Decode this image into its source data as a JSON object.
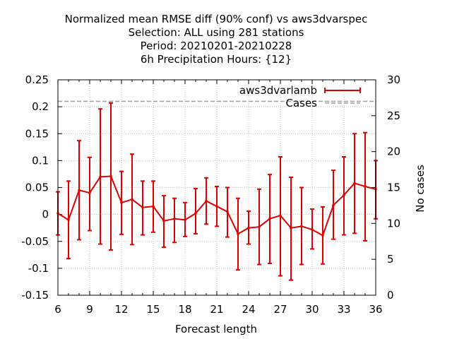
{
  "chart_data": {
    "type": "line",
    "title": [
      "Normalized mean RMSE diff (90% conf) vs aws3dvarspec",
      "Selection: ALL using   281 stations",
      "Period: 20210201-20210228",
      "6h Precipitation   Hours: {12}"
    ],
    "xlabel": "Forecast length",
    "ylabel": "",
    "y2label": "No cases",
    "xlim": [
      6,
      36
    ],
    "ylim": [
      -0.15,
      0.25
    ],
    "y2lim": [
      0,
      30
    ],
    "xticks": [
      "6",
      "9",
      "12",
      "15",
      "18",
      "21",
      "24",
      "27",
      "30",
      "33",
      "36"
    ],
    "yticks": [
      "0.25",
      "0.2",
      "0.15",
      "0.1",
      "0.05",
      "0",
      "-0.05",
      "-0.1",
      "-0.15"
    ],
    "y2ticks": [
      "30",
      "25",
      "20",
      "15",
      "10",
      "5",
      "0"
    ],
    "grid": true,
    "legend_position": "top-right",
    "series": [
      {
        "name": "aws3dvarlamb",
        "color": "#dd0000",
        "x": [
          6,
          7,
          8,
          9,
          10,
          11,
          12,
          13,
          14,
          15,
          16,
          17,
          18,
          19,
          20,
          21,
          22,
          23,
          24,
          25,
          26,
          27,
          28,
          29,
          30,
          31,
          32,
          33,
          34,
          35,
          36
        ],
        "y": [
          0.002,
          -0.01,
          0.045,
          0.04,
          0.07,
          0.071,
          0.022,
          0.028,
          0.013,
          0.015,
          -0.012,
          -0.008,
          -0.01,
          0.002,
          0.025,
          0.015,
          0.005,
          -0.036,
          -0.025,
          -0.023,
          -0.008,
          -0.002,
          -0.025,
          -0.022,
          -0.028,
          -0.039,
          0.017,
          0.036,
          0.058,
          0.052,
          0.047
        ],
        "err_low": [
          -0.038,
          -0.082,
          -0.047,
          -0.03,
          -0.055,
          -0.066,
          -0.037,
          -0.056,
          -0.038,
          -0.033,
          -0.061,
          -0.052,
          -0.041,
          -0.036,
          -0.018,
          -0.022,
          -0.042,
          -0.103,
          -0.055,
          -0.093,
          -0.091,
          -0.114,
          -0.122,
          -0.093,
          -0.064,
          -0.092,
          -0.046,
          -0.038,
          -0.035,
          -0.049,
          -0.008
        ],
        "err_high": [
          0.042,
          0.062,
          0.137,
          0.106,
          0.196,
          0.207,
          0.08,
          0.112,
          0.062,
          0.062,
          0.035,
          0.03,
          0.022,
          0.048,
          0.068,
          0.052,
          0.05,
          0.03,
          0.006,
          0.047,
          0.074,
          0.107,
          0.069,
          0.05,
          0.01,
          0.014,
          0.082,
          0.107,
          0.15,
          0.152,
          0.1
        ]
      },
      {
        "name": "Cases",
        "color": "#a0a0a0",
        "axis": "y2",
        "x": [
          6,
          36
        ],
        "y": [
          27,
          27
        ]
      }
    ]
  }
}
